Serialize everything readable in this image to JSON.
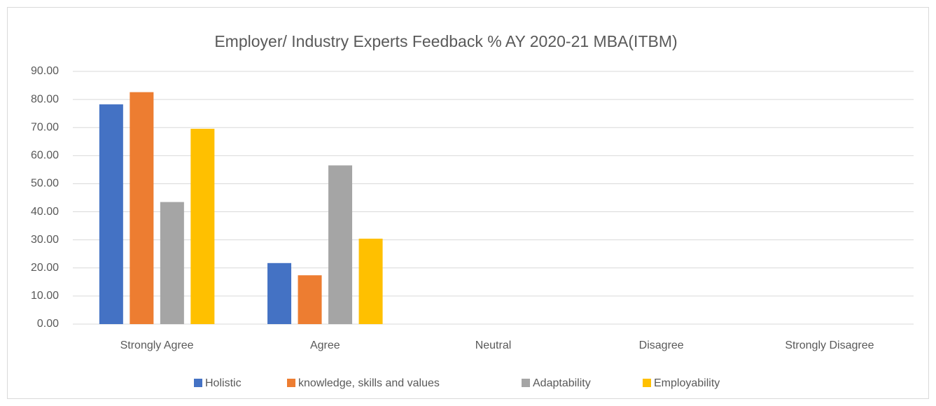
{
  "chart_data": {
    "type": "bar",
    "title": "Employer/ Industry Experts Feedback % AY 2020-21  MBA(ITBM)",
    "categories": [
      "Strongly Agree",
      "Agree",
      "Neutral",
      "Disagree",
      "Strongly Disagree"
    ],
    "series": [
      {
        "name": "Holistic",
        "color": "#4472c4",
        "values": [
          78.26,
          21.74,
          0,
          0,
          0
        ]
      },
      {
        "name": "knowledge, skills and values",
        "color": "#ed7d31",
        "values": [
          82.61,
          17.39,
          0,
          0,
          0
        ]
      },
      {
        "name": "Adaptability",
        "color": "#a5a5a5",
        "values": [
          43.48,
          56.52,
          0,
          0,
          0
        ]
      },
      {
        "name": "Employability",
        "color": "#ffc000",
        "values": [
          69.57,
          30.43,
          0,
          0,
          0
        ]
      }
    ],
    "ylim": [
      0,
      90
    ],
    "yticks": [
      {
        "value": 0,
        "label": "0.00"
      },
      {
        "value": 10,
        "label": "10.00"
      },
      {
        "value": 20,
        "label": "20.00"
      },
      {
        "value": 30,
        "label": "30.00"
      },
      {
        "value": 40,
        "label": "40.00"
      },
      {
        "value": 50,
        "label": "50.00"
      },
      {
        "value": 60,
        "label": "60.00"
      },
      {
        "value": 70,
        "label": "70.00"
      },
      {
        "value": 80,
        "label": "80.00"
      },
      {
        "value": 90,
        "label": "90.00"
      }
    ],
    "grid": true,
    "legend": "bottom"
  }
}
